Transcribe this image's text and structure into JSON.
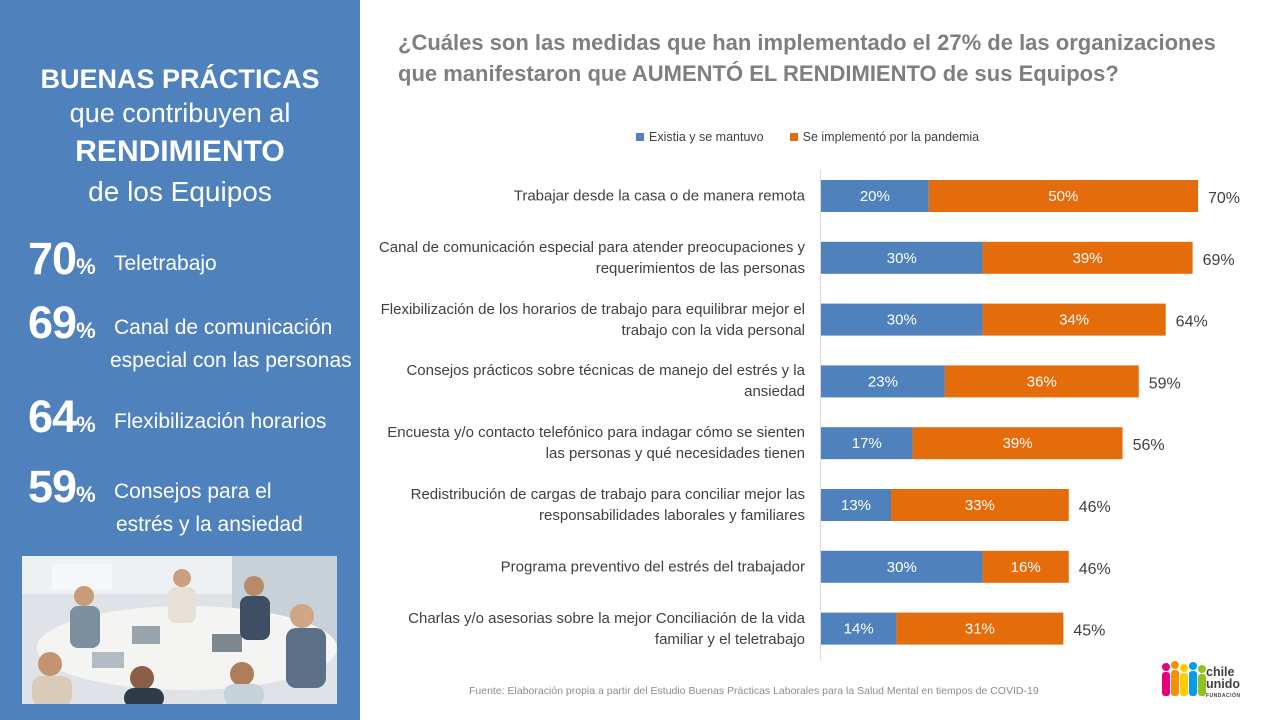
{
  "sidebar": {
    "title_bold": "BUENAS PRÁCTICAS",
    "title_line2": "que contribuyen al",
    "title_bold2": "RENDIMIENTO",
    "title_line4": "de los Equipos",
    "stats": [
      {
        "value": "70",
        "unit": "%",
        "label": "Teletrabajo",
        "label2": ""
      },
      {
        "value": "69",
        "unit": "%",
        "label": "Canal de comunicación",
        "label2": "especial con las personas"
      },
      {
        "value": "64",
        "unit": "%",
        "label": "Flexibilización horarios",
        "label2": ""
      },
      {
        "value": "59",
        "unit": "%",
        "label": "Consejos para el",
        "label2": "estrés y la ansiedad"
      }
    ]
  },
  "question": {
    "line1": "¿Cuáles son las medidas que han implementado el 27% de las organizaciones",
    "line2": "que manifestaron que AUMENTÓ EL RENDIMIENTO de sus Equipos?"
  },
  "legend": {
    "series1": "Existia y se mantuvo",
    "series2": "Se implementó por la pandemia"
  },
  "colors": {
    "sidebar": "#4f81bd",
    "series1": "#4f81bd",
    "series2": "#e46c0a"
  },
  "chart_data": {
    "type": "bar",
    "orientation": "horizontal",
    "stacked": true,
    "categories": [
      "Trabajar desde la casa o de manera remota",
      "Canal de comunicación especial para atender preocupaciones y requerimientos de las personas",
      "Flexibilización de los horarios de trabajo para equilibrar mejor el trabajo con la vida personal",
      "Consejos prácticos sobre técnicas de manejo del estrés y la ansiedad",
      "Encuesta y/o contacto telefónico para indagar cómo se sienten las personas y qué necesidades tienen",
      "Redistribución de cargas de trabajo para conciliar mejor las responsabilidades laborales y familiares",
      "Programa preventivo del estrés del trabajador",
      "Charlas y/o asesorías sobre la mejor Conciliación de la vida familiar y el teletrabajo"
    ],
    "label_lines": [
      [
        "Trabajar desde la casa o de manera remota"
      ],
      [
        "Canal de comunicación especial para atender preocupaciones y",
        "requerimientos de las personas"
      ],
      [
        "Flexibilización de los horarios de trabajo para equilibrar mejor el",
        "trabajo con la vida personal"
      ],
      [
        "Consejos prácticos sobre técnicas de manejo del estrés y la",
        "ansiedad"
      ],
      [
        "Encuesta y/o contacto telefónico para indagar cómo se sienten",
        "las personas y qué necesidades tienen"
      ],
      [
        "Redistribución de cargas de trabajo para conciliar mejor las",
        "responsabilidades laborales y familiares"
      ],
      [
        "Programa preventivo del estrés del trabajador"
      ],
      [
        "Charlas y/o asesorias sobre la mejor Conciliación de la vida",
        "familiar y el teletrabajo"
      ]
    ],
    "series": [
      {
        "name": "Existia y se mantuvo",
        "values": [
          20,
          30,
          30,
          23,
          17,
          13,
          30,
          14
        ]
      },
      {
        "name": "Se implementó por la pandemia",
        "values": [
          50,
          39,
          34,
          36,
          39,
          33,
          16,
          31
        ]
      }
    ],
    "totals": [
      70,
      69,
      64,
      59,
      56,
      46,
      46,
      45
    ],
    "data_label_suffix": "%",
    "legend_position": "top",
    "grid": false,
    "xlim": [
      0,
      70
    ]
  },
  "footnote": "Fuente:  Elaboración propia a partir del Estudio  Buenas Prácticas  Laborales para la Salud Mental  en tiempos  de COVID-19",
  "logo": {
    "line1": "chile",
    "line2": "unido",
    "line3": "FUNDACIÓN"
  }
}
